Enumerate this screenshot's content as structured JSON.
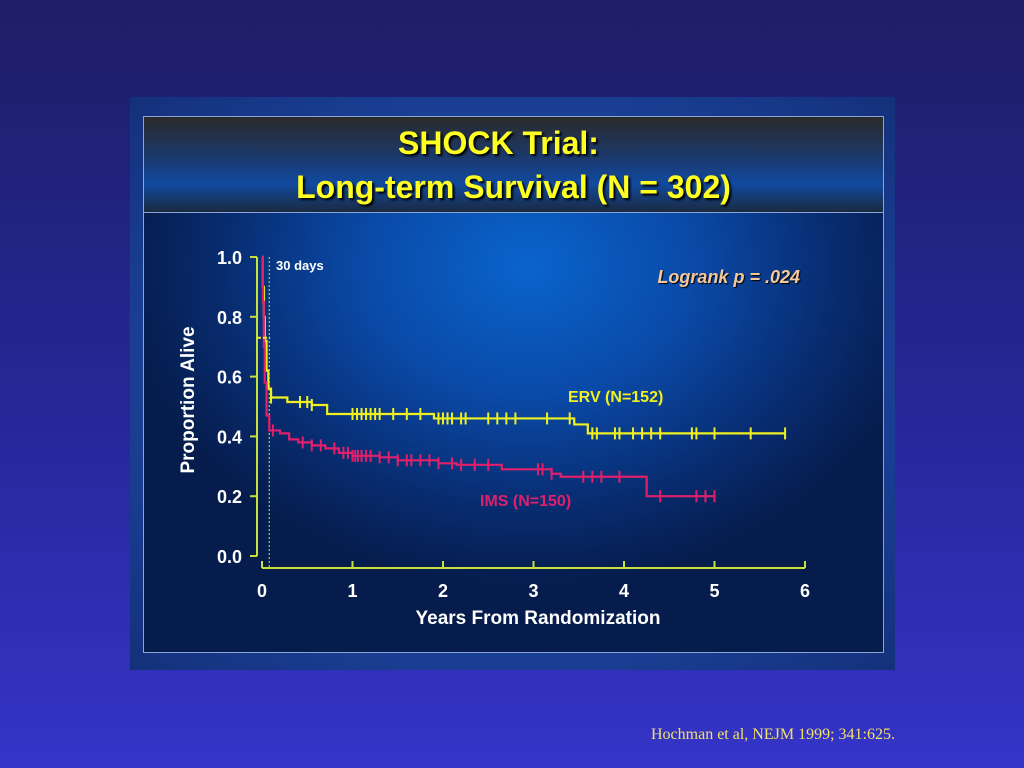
{
  "title": {
    "line1": "SHOCK Trial:",
    "line2": "Long-term Survival (N = 302)"
  },
  "citation": "Hochman et al, NEJM 1999; 341:625.",
  "chart_data": {
    "type": "line",
    "subtype": "kaplan-meier step",
    "xlabel": "Years From Randomization",
    "ylabel": "Proportion Alive",
    "xlim": [
      0,
      6
    ],
    "ylim": [
      0,
      1
    ],
    "xticks": [
      "0",
      "1",
      "2",
      "3",
      "4",
      "5",
      "6"
    ],
    "yticks": [
      "0.0",
      "0.2",
      "0.4",
      "0.6",
      "0.8",
      "1.0"
    ],
    "grid": false,
    "annotations": {
      "thirty_days": "30 days",
      "thirty_days_x": 0.08,
      "logrank": "Logrank p = .024"
    },
    "series": [
      {
        "name": "ERV (N=152)",
        "color": "#f0f020",
        "steps": [
          [
            0,
            1.0
          ],
          [
            0.01,
            0.9
          ],
          [
            0.02,
            0.8
          ],
          [
            0.03,
            0.72
          ],
          [
            0.05,
            0.62
          ],
          [
            0.07,
            0.56
          ],
          [
            0.1,
            0.53
          ],
          [
            0.28,
            0.515
          ],
          [
            0.55,
            0.505
          ],
          [
            0.72,
            0.475
          ],
          [
            1.9,
            0.46
          ],
          [
            3.45,
            0.44
          ],
          [
            3.6,
            0.41
          ]
        ],
        "end": 5.78,
        "censored": [
          0.1,
          0.42,
          0.5,
          0.55,
          1.0,
          1.05,
          1.1,
          1.15,
          1.2,
          1.25,
          1.3,
          1.45,
          1.6,
          1.75,
          1.95,
          2.0,
          2.05,
          2.1,
          2.2,
          2.25,
          2.5,
          2.6,
          2.7,
          2.8,
          3.15,
          3.4,
          3.65,
          3.7,
          3.9,
          3.95,
          4.1,
          4.2,
          4.3,
          4.4,
          4.75,
          4.8,
          5.0,
          5.4,
          5.78
        ]
      },
      {
        "name": "IMS (N=150)",
        "color": "#e0206a",
        "steps": [
          [
            0,
            1.0
          ],
          [
            0.01,
            0.85
          ],
          [
            0.02,
            0.7
          ],
          [
            0.03,
            0.58
          ],
          [
            0.05,
            0.47
          ],
          [
            0.08,
            0.42
          ],
          [
            0.2,
            0.41
          ],
          [
            0.3,
            0.39
          ],
          [
            0.4,
            0.38
          ],
          [
            0.55,
            0.37
          ],
          [
            0.7,
            0.36
          ],
          [
            0.85,
            0.345
          ],
          [
            1.0,
            0.335
          ],
          [
            1.3,
            0.33
          ],
          [
            1.5,
            0.32
          ],
          [
            1.95,
            0.31
          ],
          [
            2.15,
            0.305
          ],
          [
            2.65,
            0.29
          ],
          [
            3.2,
            0.275
          ],
          [
            3.3,
            0.265
          ],
          [
            4.25,
            0.2
          ]
        ],
        "end": 5.0,
        "censored": [
          0.12,
          0.45,
          0.55,
          0.65,
          0.8,
          0.9,
          0.95,
          1.0,
          1.03,
          1.06,
          1.1,
          1.15,
          1.2,
          1.3,
          1.4,
          1.5,
          1.6,
          1.65,
          1.75,
          1.85,
          1.95,
          2.1,
          2.2,
          2.35,
          2.5,
          3.05,
          3.1,
          3.2,
          3.55,
          3.65,
          3.75,
          3.95,
          4.4,
          4.8,
          4.9,
          5.0
        ]
      }
    ]
  }
}
